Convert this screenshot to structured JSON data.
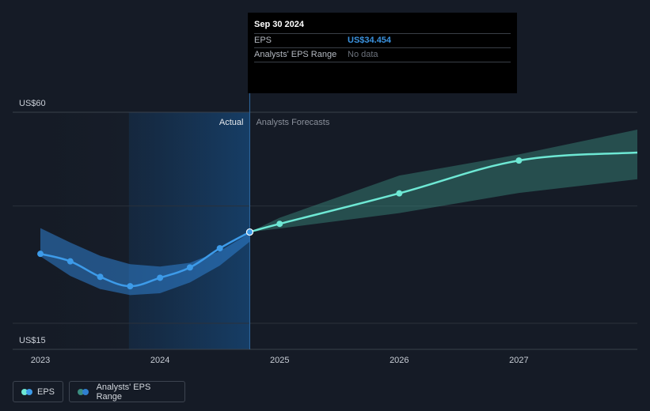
{
  "chart_data": {
    "type": "line",
    "x_ticks": [
      "2023",
      "2024",
      "2025",
      "2026",
      "2027"
    ],
    "y_ticks": [
      {
        "value": 60,
        "label": "US$60"
      },
      {
        "value": 15,
        "label": "US$15"
      }
    ],
    "ylim": [
      15,
      60
    ],
    "xlim": [
      2022.98,
      2027.99
    ],
    "grid": true,
    "divider_x": 2024.75,
    "actual_label": "Actual",
    "forecast_label": "Analysts Forecasts",
    "series": [
      {
        "name": "EPS",
        "color": "#3d9be9",
        "points": [
          {
            "x": 2023.0,
            "y": 29.8
          },
          {
            "x": 2023.25,
            "y": 28.2
          },
          {
            "x": 2023.5,
            "y": 24.9
          },
          {
            "x": 2023.75,
            "y": 22.9
          },
          {
            "x": 2024.0,
            "y": 24.7
          },
          {
            "x": 2024.25,
            "y": 26.9
          },
          {
            "x": 2024.5,
            "y": 31.0
          },
          {
            "x": 2024.75,
            "y": 34.454
          }
        ]
      },
      {
        "name": "EPS forecast",
        "color": "#6ee8d4",
        "points": [
          {
            "x": 2024.75,
            "y": 34.454
          },
          {
            "x": 2025.0,
            "y": 36.2
          },
          {
            "x": 2026.0,
            "y": 42.7
          },
          {
            "x": 2027.0,
            "y": 49.7
          },
          {
            "x": 2027.99,
            "y": 51.4
          }
        ]
      }
    ],
    "ranges": [
      {
        "name": "Analysts' EPS Range (actual)",
        "color": "#2f7fd0",
        "upper": [
          {
            "x": 2023.0,
            "y": 35.3
          },
          {
            "x": 2023.25,
            "y": 32.2
          },
          {
            "x": 2023.5,
            "y": 29.4
          },
          {
            "x": 2023.75,
            "y": 27.6
          },
          {
            "x": 2024.0,
            "y": 27.1
          },
          {
            "x": 2024.25,
            "y": 27.9
          },
          {
            "x": 2024.5,
            "y": 30.4
          },
          {
            "x": 2024.75,
            "y": 34.2
          }
        ],
        "lower": [
          {
            "x": 2024.75,
            "y": 32.4
          },
          {
            "x": 2024.5,
            "y": 27.3
          },
          {
            "x": 2024.25,
            "y": 23.7
          },
          {
            "x": 2024.0,
            "y": 21.4
          },
          {
            "x": 2023.75,
            "y": 21.0
          },
          {
            "x": 2023.5,
            "y": 22.3
          },
          {
            "x": 2023.25,
            "y": 25.1
          },
          {
            "x": 2023.0,
            "y": 29.3
          }
        ]
      },
      {
        "name": "Analysts' EPS Range (forecast)",
        "color": "#3b8d80",
        "upper": [
          {
            "x": 2024.75,
            "y": 34.454
          },
          {
            "x": 2025.0,
            "y": 37.5
          },
          {
            "x": 2026.0,
            "y": 46.5
          },
          {
            "x": 2027.0,
            "y": 51.0
          },
          {
            "x": 2027.99,
            "y": 56.3
          }
        ],
        "lower": [
          {
            "x": 2027.99,
            "y": 45.7
          },
          {
            "x": 2027.0,
            "y": 42.8
          },
          {
            "x": 2026.0,
            "y": 38.5
          },
          {
            "x": 2025.0,
            "y": 35.2
          },
          {
            "x": 2024.75,
            "y": 34.454
          }
        ]
      }
    ]
  },
  "tooltip": {
    "date": "Sep 30 2024",
    "rows": [
      {
        "label": "EPS",
        "value": "US$34.454"
      },
      {
        "label": "Analysts' EPS Range",
        "value": "No data"
      }
    ]
  },
  "legend": {
    "items": [
      {
        "label": "EPS",
        "dot_a": "#6ee8d4",
        "dot_b": "#3d9be9"
      },
      {
        "label": "Analysts' EPS Range",
        "dot_a": "#3b8d80",
        "dot_b": "#2f7fd0"
      }
    ]
  }
}
